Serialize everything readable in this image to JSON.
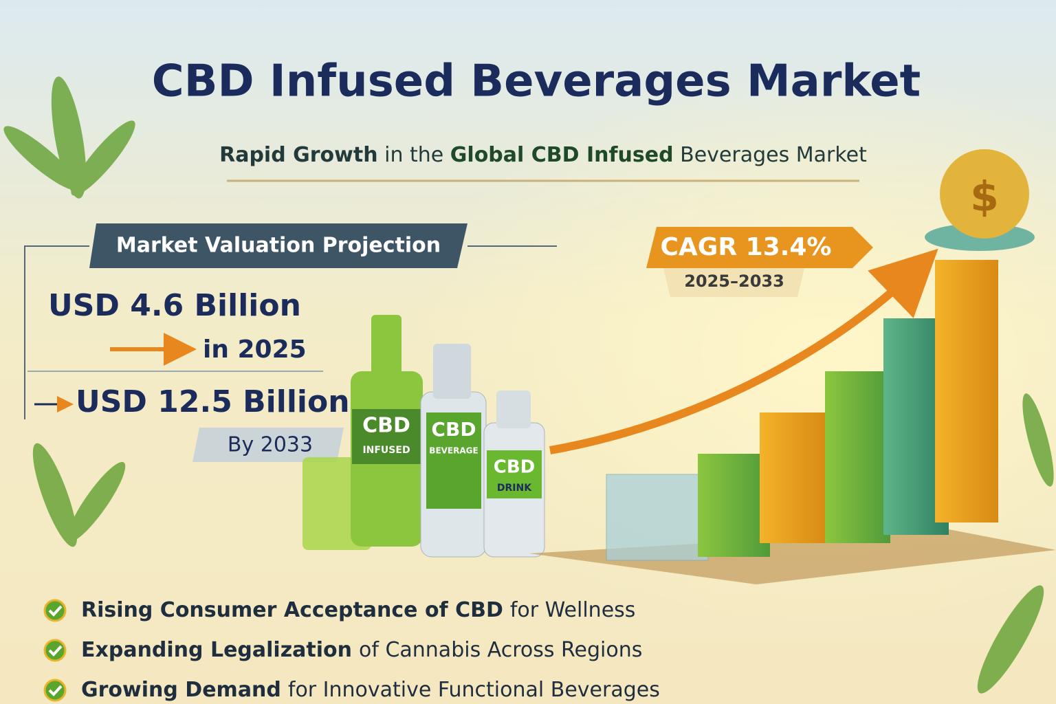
{
  "header": {
    "title": "CBD Infused Beverages Market",
    "subtitle": [
      "Rapid Growth",
      "in the",
      "Global CBD Infused",
      "Beverages Market"
    ]
  },
  "valuation": {
    "heading": "Market Valuation Projection",
    "current": {
      "amount": "USD 4.6 Billion",
      "year": "in 2025"
    },
    "forecast": {
      "amount": "USD 12.5 Billion",
      "year": "By 2033"
    }
  },
  "cagr": {
    "label": "CAGR 13.4%",
    "period": "2025–2033"
  },
  "products": [
    {
      "line1": "CBD",
      "line2": "INFUSED"
    },
    {
      "line1": "CBD",
      "line2": "BEVERAGE"
    },
    {
      "line1": "CBD",
      "line2": "DRINK"
    }
  ],
  "drivers": [
    [
      "Rising Consumer Acceptance of CBD",
      "for Wellness"
    ],
    [
      "Expanding Legalization",
      "of Cannabis Across Regions"
    ],
    [
      "Growing Demand",
      "for Innovative Functional Beverages"
    ]
  ]
}
